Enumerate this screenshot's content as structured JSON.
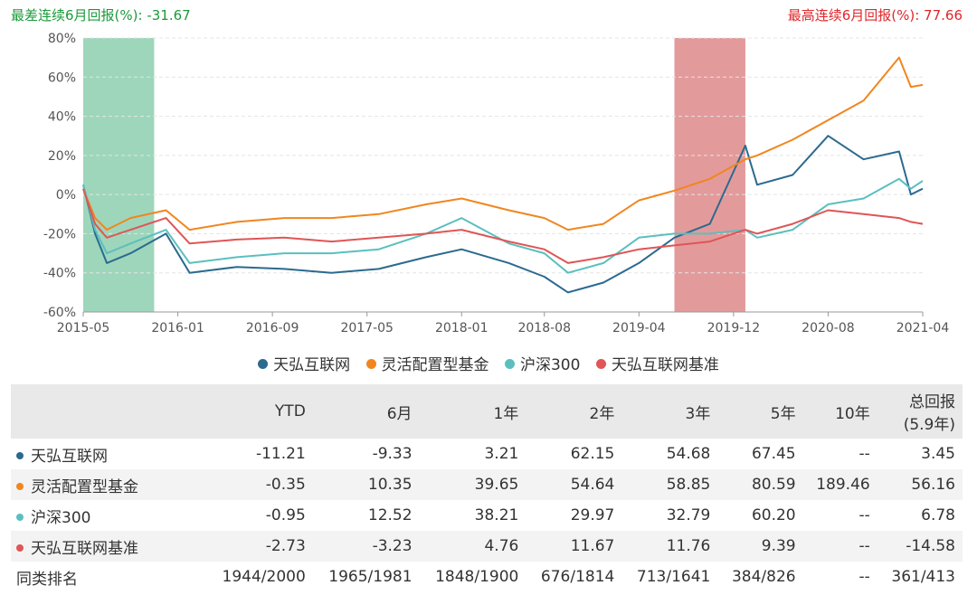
{
  "header": {
    "worst_label": "最差连续6月回报(%): -31.67",
    "best_label": "最高连续6月回报(%): 77.66"
  },
  "chart_data": {
    "type": "line",
    "ylim": [
      -60,
      80
    ],
    "y_ticks": [
      "80%",
      "60%",
      "40%",
      "20%",
      "0%",
      "-20%",
      "-40%",
      "-60%"
    ],
    "x_ticks": [
      "2015-05",
      "2016-01",
      "2016-09",
      "2017-05",
      "2018-01",
      "2018-08",
      "2019-04",
      "2019-12",
      "2020-08",
      "2021-04"
    ],
    "shaded_ranges": [
      {
        "from": "2015-05",
        "to": "2015-11",
        "color": "#9ed6bb"
      },
      {
        "from": "2019-07",
        "to": "2020-01",
        "color": "#e39a9b"
      }
    ],
    "series": [
      {
        "name": "天弘互联网",
        "color": "#2b6a8f",
        "x": [
          "2015-05",
          "2015-06",
          "2015-07",
          "2015-09",
          "2015-12",
          "2016-02",
          "2016-06",
          "2016-10",
          "2017-02",
          "2017-06",
          "2017-10",
          "2018-01",
          "2018-05",
          "2018-08",
          "2018-10",
          "2019-01",
          "2019-04",
          "2019-07",
          "2019-10",
          "2020-01",
          "2020-02",
          "2020-05",
          "2020-08",
          "2020-11",
          "2021-02",
          "2021-03",
          "2021-04"
        ],
        "y": [
          5,
          -20,
          -35,
          -30,
          -20,
          -40,
          -37,
          -38,
          -40,
          -38,
          -32,
          -28,
          -35,
          -42,
          -50,
          -45,
          -35,
          -22,
          -15,
          25,
          5,
          10,
          30,
          18,
          22,
          0,
          3
        ]
      },
      {
        "name": "灵活配置型基金",
        "color": "#f0861f",
        "x": [
          "2015-05",
          "2015-06",
          "2015-07",
          "2015-09",
          "2015-12",
          "2016-02",
          "2016-06",
          "2016-10",
          "2017-02",
          "2017-06",
          "2017-10",
          "2018-01",
          "2018-05",
          "2018-08",
          "2018-10",
          "2019-01",
          "2019-04",
          "2019-07",
          "2019-10",
          "2020-01",
          "2020-02",
          "2020-05",
          "2020-08",
          "2020-11",
          "2021-02",
          "2021-03",
          "2021-04"
        ],
        "y": [
          3,
          -12,
          -18,
          -12,
          -8,
          -18,
          -14,
          -12,
          -12,
          -10,
          -5,
          -2,
          -8,
          -12,
          -18,
          -15,
          -3,
          2,
          8,
          18,
          20,
          28,
          38,
          48,
          70,
          55,
          56
        ]
      },
      {
        "name": "沪深300",
        "color": "#5bbfbf",
        "x": [
          "2015-05",
          "2015-06",
          "2015-07",
          "2015-09",
          "2015-12",
          "2016-02",
          "2016-06",
          "2016-10",
          "2017-02",
          "2017-06",
          "2017-10",
          "2018-01",
          "2018-05",
          "2018-08",
          "2018-10",
          "2019-01",
          "2019-04",
          "2019-07",
          "2019-10",
          "2020-01",
          "2020-02",
          "2020-05",
          "2020-08",
          "2020-11",
          "2021-02",
          "2021-03",
          "2021-04"
        ],
        "y": [
          5,
          -18,
          -30,
          -25,
          -18,
          -35,
          -32,
          -30,
          -30,
          -28,
          -20,
          -12,
          -25,
          -30,
          -40,
          -35,
          -22,
          -20,
          -20,
          -18,
          -22,
          -18,
          -5,
          -2,
          8,
          3,
          7
        ]
      },
      {
        "name": "天弘互联网基准",
        "color": "#e05555",
        "x": [
          "2015-05",
          "2015-06",
          "2015-07",
          "2015-09",
          "2015-12",
          "2016-02",
          "2016-06",
          "2016-10",
          "2017-02",
          "2017-06",
          "2017-10",
          "2018-01",
          "2018-05",
          "2018-08",
          "2018-10",
          "2019-01",
          "2019-04",
          "2019-07",
          "2019-10",
          "2020-01",
          "2020-02",
          "2020-05",
          "2020-08",
          "2020-11",
          "2021-02",
          "2021-03",
          "2021-04"
        ],
        "y": [
          3,
          -15,
          -22,
          -18,
          -12,
          -25,
          -23,
          -22,
          -24,
          -22,
          -20,
          -18,
          -24,
          -28,
          -35,
          -32,
          -28,
          -26,
          -24,
          -18,
          -20,
          -15,
          -8,
          -10,
          -12,
          -14,
          -15
        ]
      }
    ]
  },
  "table": {
    "headers": [
      "",
      "YTD",
      "6月",
      "1年",
      "2年",
      "3年",
      "5年",
      "10年",
      "总回报",
      "(5.9年)"
    ],
    "rows": [
      {
        "name": "天弘互联网",
        "color": "#2b6a8f",
        "values": [
          "-11.21",
          "-9.33",
          "3.21",
          "62.15",
          "54.68",
          "67.45",
          "--",
          "3.45"
        ]
      },
      {
        "name": "灵活配置型基金",
        "color": "#f0861f",
        "values": [
          "-0.35",
          "10.35",
          "39.65",
          "54.64",
          "58.85",
          "80.59",
          "189.46",
          "56.16"
        ]
      },
      {
        "name": "沪深300",
        "color": "#5bbfbf",
        "values": [
          "-0.95",
          "12.52",
          "38.21",
          "29.97",
          "32.79",
          "60.20",
          "--",
          "6.78"
        ]
      },
      {
        "name": "天弘互联网基准",
        "color": "#e05555",
        "values": [
          "-2.73",
          "-3.23",
          "4.76",
          "11.67",
          "11.76",
          "9.39",
          "--",
          "-14.58"
        ]
      },
      {
        "name": "同类排名",
        "color": "",
        "values": [
          "1944/2000",
          "1965/1981",
          "1848/1900",
          "676/1814",
          "713/1641",
          "384/826",
          "--",
          "361/413"
        ]
      }
    ]
  }
}
